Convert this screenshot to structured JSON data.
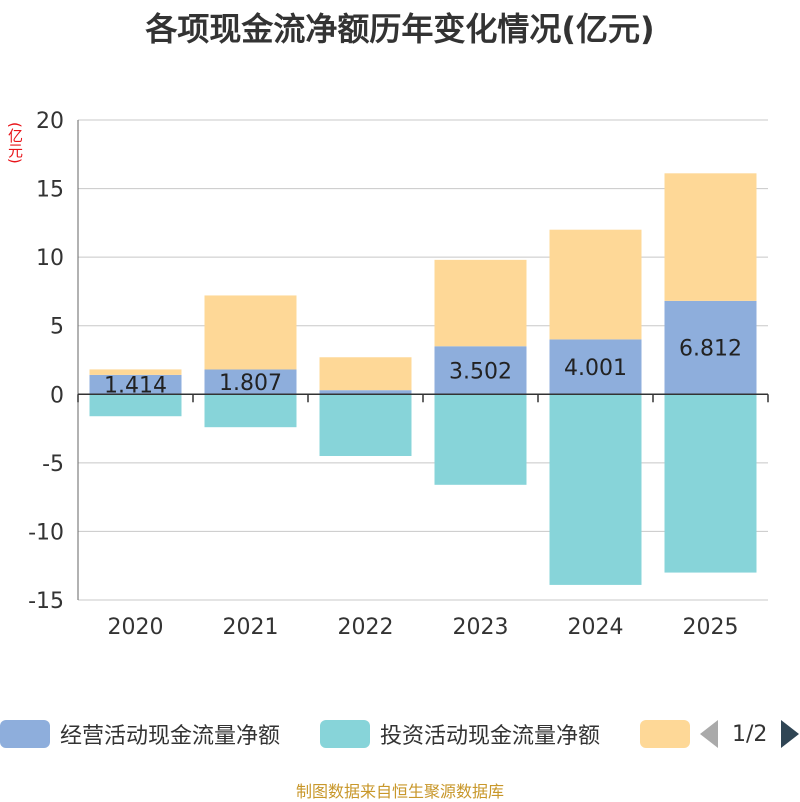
{
  "chart_data": {
    "type": "bar",
    "stacked": true,
    "title": "各项现金流净额历年变化情况(亿元)",
    "ylabel": "(亿元)",
    "xlabel": "",
    "ylim": [
      -15,
      20
    ],
    "yticks": [
      20,
      15,
      10,
      5,
      0,
      -5,
      -10,
      -15
    ],
    "grid": true,
    "categories": [
      "2020",
      "2021",
      "2022",
      "2023",
      "2024",
      "2025"
    ],
    "series": [
      {
        "name": "经营活动现金流量净额",
        "color": "#8eaedc",
        "values": [
          1.414,
          1.807,
          0.3,
          3.502,
          4.001,
          6.812
        ],
        "labels": [
          "1.414",
          "1.807",
          "",
          "3.502",
          "4.001",
          "6.812"
        ]
      },
      {
        "name": "投资活动现金流量净额",
        "color": "#87d4d9",
        "values": [
          -1.6,
          -2.4,
          -4.5,
          -6.6,
          -13.9,
          -13.0
        ]
      },
      {
        "name": "",
        "color": "#fed897",
        "values": [
          0.4,
          5.4,
          2.4,
          6.3,
          8.0,
          9.3
        ]
      }
    ],
    "legend_position": "bottom"
  },
  "legend": {
    "page": "1/2"
  },
  "footer": {
    "source": "制图数据来自恒生聚源数据库"
  }
}
